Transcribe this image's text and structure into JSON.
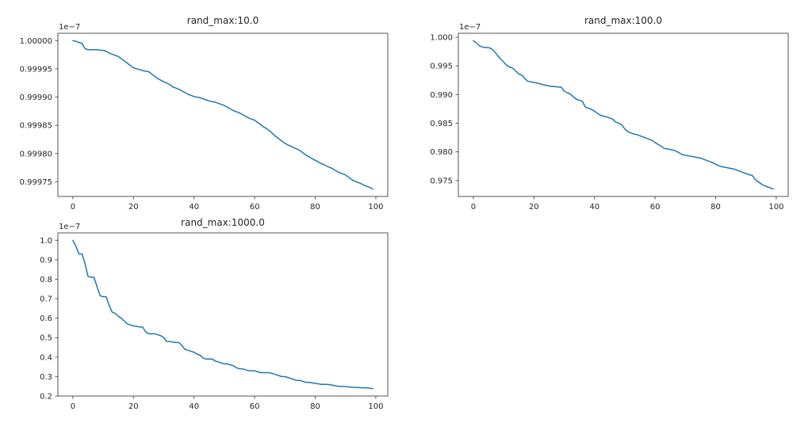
{
  "colors": {
    "line": "#1f77b4",
    "spine": "#565656",
    "text": "#262626",
    "background": "#ffffff"
  },
  "chart_data": [
    {
      "type": "line",
      "title": "rand_max:10.0",
      "offset_label": "1e−7",
      "y_scale_note": "y values are in units of 1e-7",
      "x_start": 0,
      "x_end": 99,
      "xlim": [
        -4.95,
        103.95
      ],
      "ylim": [
        0.99972385,
        1.00001315
      ],
      "xticks": [
        0,
        20,
        40,
        60,
        80,
        100
      ],
      "ytick_labels": [
        "1.00000",
        "0.99995",
        "0.99990",
        "0.99985",
        "0.99980",
        "0.99975"
      ],
      "grid": false,
      "legend": null,
      "values": [
        1.0,
        0.999999,
        0.999997,
        0.999995,
        0.999986,
        0.999984,
        0.999984,
        0.999984,
        0.999984,
        0.999983,
        0.999983,
        0.999981,
        0.999978,
        0.999976,
        0.999974,
        0.999972,
        0.999968,
        0.999964,
        0.99996,
        0.999956,
        0.999952,
        0.99995,
        0.999949,
        0.999947,
        0.999946,
        0.999945,
        0.999941,
        0.999937,
        0.999933,
        0.99993,
        0.999927,
        0.999925,
        0.999922,
        0.999918,
        0.999916,
        0.999914,
        0.999911,
        0.999908,
        0.999905,
        0.999903,
        0.999901,
        0.9999,
        0.999899,
        0.999897,
        0.999895,
        0.999893,
        0.999892,
        0.999891,
        0.999889,
        0.999887,
        0.999885,
        0.999882,
        0.999879,
        0.999876,
        0.999874,
        0.999872,
        0.999869,
        0.999866,
        0.999863,
        0.999861,
        0.999859,
        0.999855,
        0.999851,
        0.999847,
        0.999844,
        0.99984,
        0.999835,
        0.99983,
        0.999826,
        0.999822,
        0.999818,
        0.999815,
        0.999813,
        0.99981,
        0.999808,
        0.999805,
        0.999801,
        0.999797,
        0.999794,
        0.999791,
        0.999788,
        0.999785,
        0.999782,
        0.99978,
        0.999777,
        0.999775,
        0.999772,
        0.999769,
        0.999766,
        0.999764,
        0.999762,
        0.999758,
        0.999754,
        0.999751,
        0.999749,
        0.999747,
        0.999744,
        0.999742,
        0.99974,
        0.999737
      ]
    },
    {
      "type": "line",
      "title": "rand_max:100.0",
      "offset_label": "1e−7",
      "y_scale_note": "y values are in units of 1e-7",
      "x_start": 0,
      "x_end": 99,
      "xlim": [
        -4.95,
        103.95
      ],
      "ylim": [
        0.972205,
        1.000695
      ],
      "xticks": [
        0,
        20,
        40,
        60,
        80,
        100
      ],
      "ytick_labels": [
        "1.000",
        "0.995",
        "0.990",
        "0.985",
        "0.980",
        "0.975"
      ],
      "grid": false,
      "legend": null,
      "values": [
        0.9994,
        0.999,
        0.9985,
        0.9983,
        0.9982,
        0.9982,
        0.998,
        0.9975,
        0.9968,
        0.9962,
        0.9957,
        0.9951,
        0.9948,
        0.9946,
        0.9941,
        0.9936,
        0.9934,
        0.9928,
        0.9923,
        0.9922,
        0.9921,
        0.992,
        0.9919,
        0.9917,
        0.9916,
        0.9915,
        0.9914,
        0.9914,
        0.9913,
        0.9913,
        0.9906,
        0.9903,
        0.9901,
        0.9896,
        0.9892,
        0.989,
        0.9888,
        0.9878,
        0.9876,
        0.9874,
        0.9871,
        0.9867,
        0.9864,
        0.9862,
        0.9861,
        0.9859,
        0.9857,
        0.9852,
        0.985,
        0.9847,
        0.984,
        0.9835,
        0.9833,
        0.9831,
        0.983,
        0.9828,
        0.9826,
        0.9824,
        0.9822,
        0.982,
        0.9816,
        0.9813,
        0.981,
        0.9806,
        0.9805,
        0.9804,
        0.9803,
        0.9801,
        0.9798,
        0.9795,
        0.9794,
        0.9793,
        0.9792,
        0.9791,
        0.979,
        0.9789,
        0.9787,
        0.9785,
        0.9783,
        0.9781,
        0.9778,
        0.9776,
        0.9774,
        0.9773,
        0.9772,
        0.9771,
        0.977,
        0.9768,
        0.9766,
        0.9764,
        0.9762,
        0.976,
        0.9759,
        0.9752,
        0.9748,
        0.9744,
        0.9741,
        0.9739,
        0.9737,
        0.9735
      ]
    },
    {
      "type": "line",
      "title": "rand_max:1000.0",
      "offset_label": "1e−7",
      "y_scale_note": "y values are in units of 1e-7",
      "x_start": 0,
      "x_end": 99,
      "xlim": [
        -4.95,
        103.95
      ],
      "ylim": [
        0.1999,
        1.0381
      ],
      "xticks": [
        0,
        20,
        40,
        60,
        80,
        100
      ],
      "ytick_labels": [
        "1.0",
        "0.9",
        "0.8",
        "0.7",
        "0.6",
        "0.5",
        "0.4",
        "0.3",
        "0.2"
      ],
      "grid": false,
      "legend": null,
      "values": [
        1.0,
        0.97,
        0.93,
        0.93,
        0.88,
        0.815,
        0.81,
        0.81,
        0.76,
        0.715,
        0.71,
        0.71,
        0.665,
        0.63,
        0.625,
        0.61,
        0.6,
        0.585,
        0.57,
        0.565,
        0.56,
        0.558,
        0.555,
        0.555,
        0.53,
        0.52,
        0.52,
        0.52,
        0.515,
        0.51,
        0.5,
        0.48,
        0.48,
        0.477,
        0.475,
        0.475,
        0.46,
        0.44,
        0.435,
        0.43,
        0.425,
        0.415,
        0.41,
        0.395,
        0.39,
        0.39,
        0.39,
        0.38,
        0.375,
        0.37,
        0.365,
        0.365,
        0.36,
        0.355,
        0.345,
        0.34,
        0.34,
        0.335,
        0.33,
        0.33,
        0.33,
        0.325,
        0.32,
        0.32,
        0.32,
        0.32,
        0.315,
        0.31,
        0.305,
        0.3,
        0.3,
        0.295,
        0.29,
        0.285,
        0.28,
        0.28,
        0.275,
        0.27,
        0.27,
        0.268,
        0.265,
        0.263,
        0.26,
        0.26,
        0.26,
        0.258,
        0.255,
        0.252,
        0.25,
        0.25,
        0.248,
        0.247,
        0.245,
        0.245,
        0.244,
        0.243,
        0.242,
        0.242,
        0.24,
        0.238
      ]
    }
  ]
}
